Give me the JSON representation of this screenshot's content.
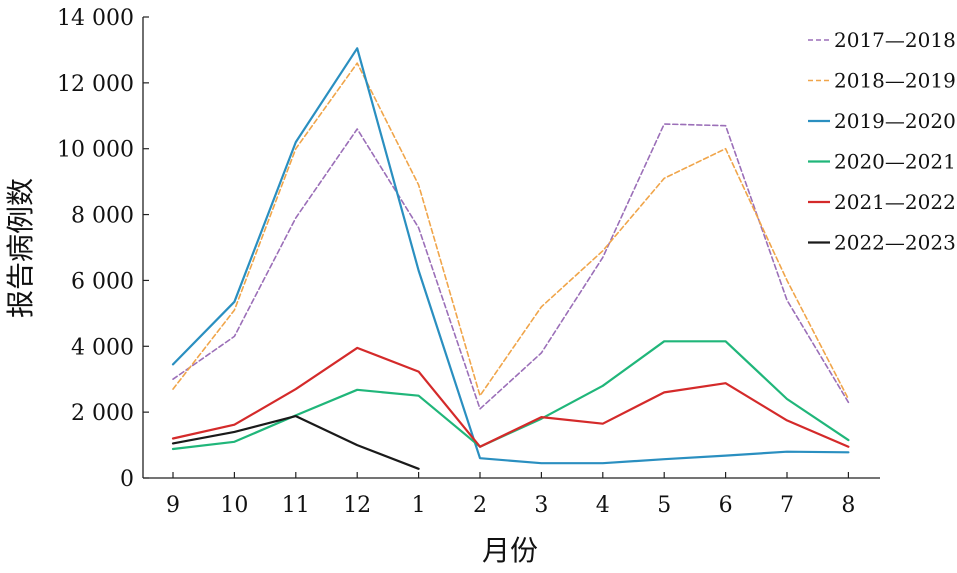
{
  "chart_data": {
    "type": "line",
    "title": "",
    "xlabel": "月份",
    "ylabel": "报告病例数",
    "categories": [
      "9",
      "10",
      "11",
      "12",
      "1",
      "2",
      "3",
      "4",
      "5",
      "6",
      "7",
      "8"
    ],
    "y_ticks": [
      0,
      2000,
      4000,
      6000,
      8000,
      10000,
      12000,
      14000
    ],
    "y_tick_labels": [
      "0",
      "2 000",
      "4 000",
      "6 000",
      "8 000",
      "10 000",
      "12 000",
      "14 000"
    ],
    "ylim": [
      0,
      14000
    ],
    "grid": false,
    "legend_position": "top-right",
    "series": [
      {
        "name": "2017—2018",
        "color": "#9b6fb8",
        "dash": "dashed",
        "values": [
          3000,
          4300,
          7900,
          10600,
          7600,
          2100,
          3800,
          6700,
          10750,
          10700,
          5400,
          2300
        ]
      },
      {
        "name": "2018—2019",
        "color": "#f0a54a",
        "dash": "dashed",
        "values": [
          2700,
          5100,
          10000,
          12600,
          8900,
          2500,
          5200,
          6900,
          9100,
          10000,
          6000,
          2400
        ]
      },
      {
        "name": "2019—2020",
        "color": "#2a8fc0",
        "dash": "solid",
        "values": [
          3450,
          5350,
          10200,
          13050,
          6300,
          600,
          450,
          450,
          570,
          680,
          800,
          780
        ]
      },
      {
        "name": "2020—2021",
        "color": "#20b67a",
        "dash": "solid",
        "values": [
          880,
          1100,
          1900,
          2680,
          2500,
          950,
          1800,
          2800,
          4150,
          4150,
          2400,
          1150
        ]
      },
      {
        "name": "2021—2022",
        "color": "#d42a2a",
        "dash": "solid",
        "values": [
          1200,
          1620,
          2700,
          3950,
          3230,
          950,
          1850,
          1650,
          2600,
          2880,
          1750,
          950
        ]
      },
      {
        "name": "2022—2023",
        "color": "#1a1a1a",
        "dash": "solid",
        "values": [
          1050,
          1400,
          1880,
          1000,
          280,
          null,
          null,
          null,
          null,
          null,
          null,
          null
        ]
      }
    ]
  }
}
